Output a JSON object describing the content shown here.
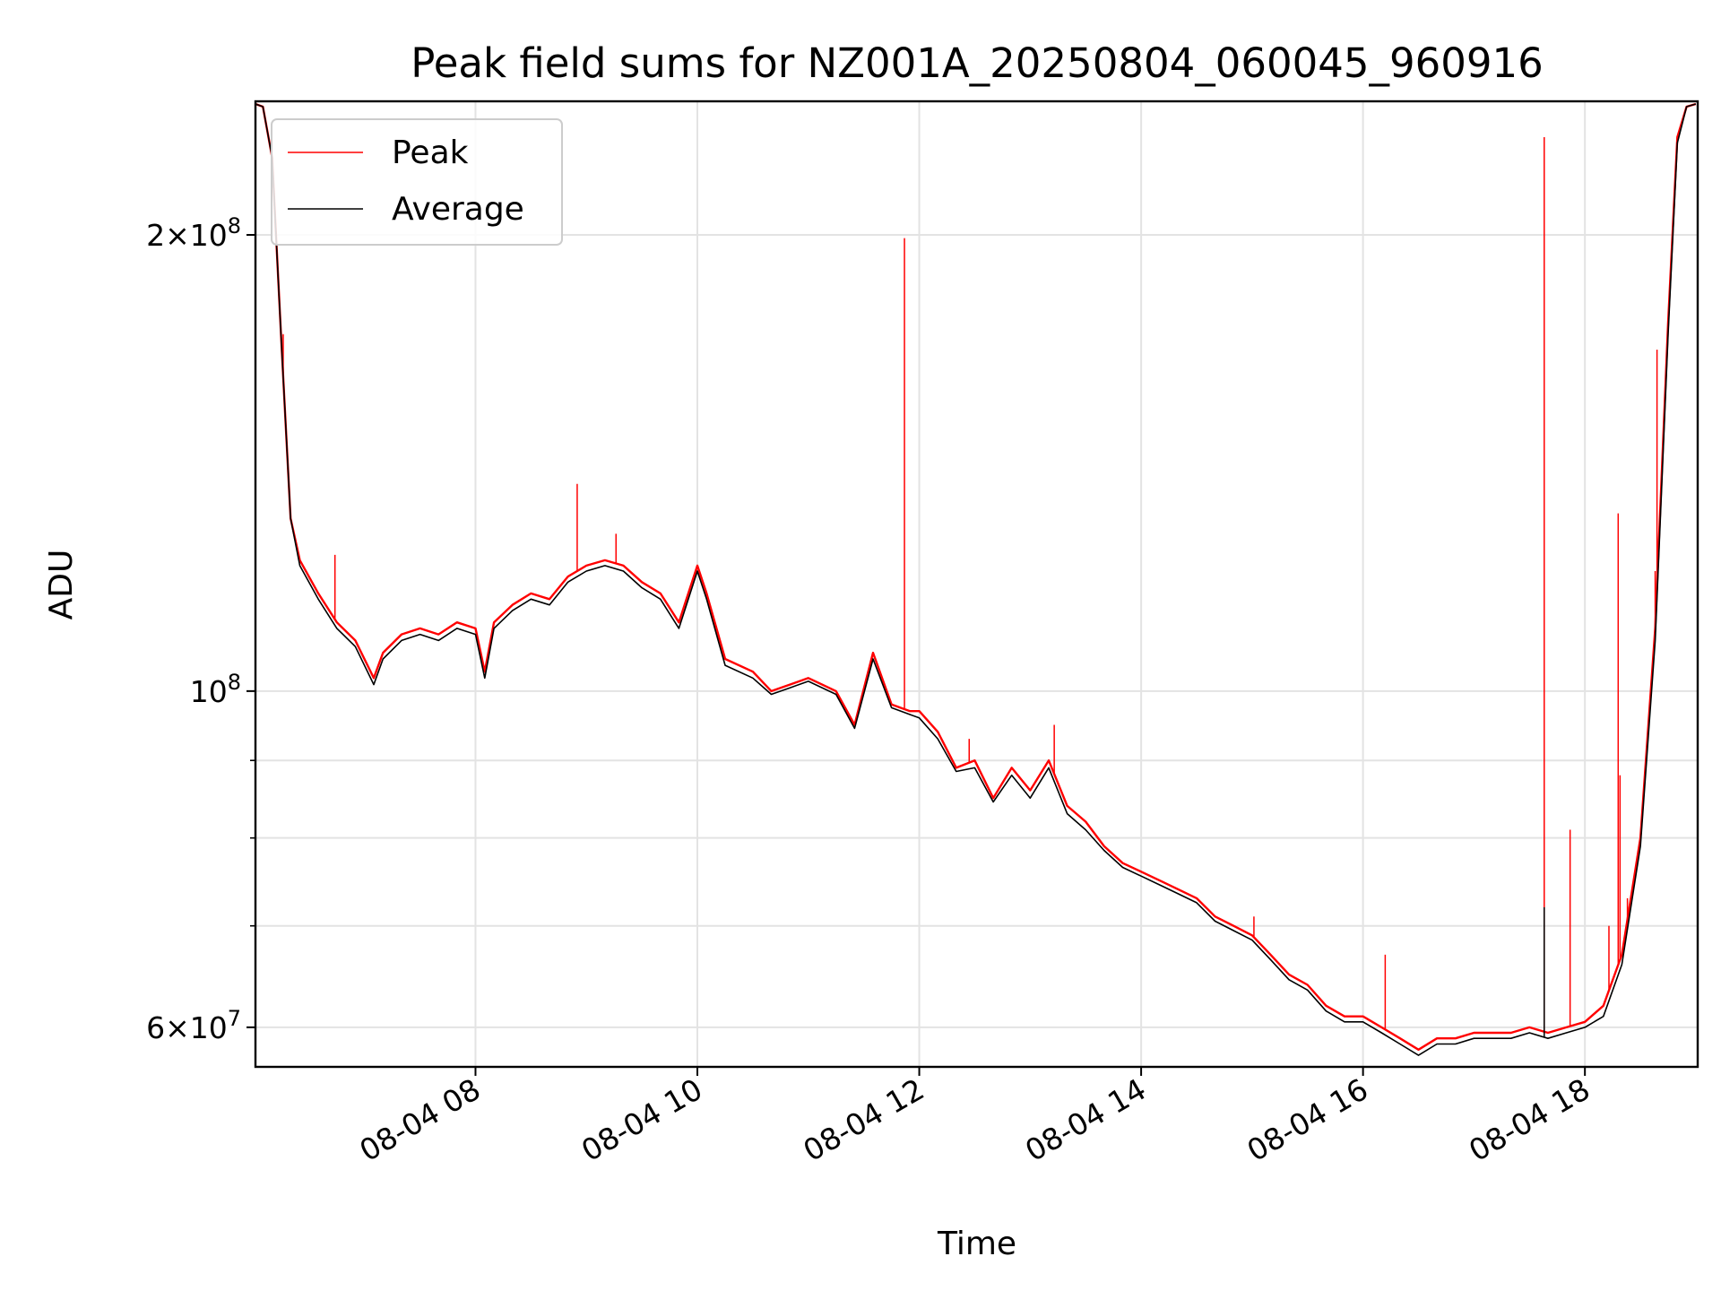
{
  "chart_data": {
    "type": "line",
    "title": "Peak field sums for NZ001A_20250804_060045_960916",
    "xlabel": "Time",
    "ylabel": "ADU",
    "yscale": "log",
    "ylim": [
      56500000,
      245000000
    ],
    "xlim": [
      "08-04 06:01",
      "08-04 19:01"
    ],
    "x_ticks": [
      {
        "value": "08-04 08:00",
        "label": "08-04 08"
      },
      {
        "value": "08-04 10:00",
        "label": "08-04 10"
      },
      {
        "value": "08-04 12:00",
        "label": "08-04 12"
      },
      {
        "value": "08-04 14:00",
        "label": "08-04 14"
      },
      {
        "value": "08-04 16:00",
        "label": "08-04 16"
      },
      {
        "value": "08-04 18:00",
        "label": "08-04 18"
      }
    ],
    "y_major_ticks": [
      {
        "value": 200000000,
        "mantissa": "2",
        "exponent": "8"
      },
      {
        "value": 100000000,
        "mantissa": "",
        "exponent": "8"
      },
      {
        "value": 60000000,
        "mantissa": "6",
        "exponent": "7"
      }
    ],
    "y_minor_ticks": [
      70000000,
      80000000,
      90000000
    ],
    "grid": true,
    "legend_position": "top-left",
    "series": [
      {
        "name": "Peak",
        "color": "#ff0000",
        "points": [
          [
            "08-04 06:01",
            244000000
          ],
          [
            "08-04 06:05",
            243000000
          ],
          [
            "08-04 06:10",
            225000000
          ],
          [
            "08-04 06:15",
            170000000
          ],
          [
            "08-04 06:20",
            130000000
          ],
          [
            "08-04 06:25",
            122000000
          ],
          [
            "08-04 06:35",
            116000000
          ],
          [
            "08-04 06:45",
            111000000
          ],
          [
            "08-04 06:55",
            108000000
          ],
          [
            "08-04 07:05",
            102000000
          ],
          [
            "08-04 07:10",
            106000000
          ],
          [
            "08-04 07:20",
            109000000
          ],
          [
            "08-04 07:30",
            110000000
          ],
          [
            "08-04 07:40",
            109000000
          ],
          [
            "08-04 07:50",
            111000000
          ],
          [
            "08-04 08:00",
            110000000
          ],
          [
            "08-04 08:05",
            103000000
          ],
          [
            "08-04 08:10",
            111000000
          ],
          [
            "08-04 08:20",
            114000000
          ],
          [
            "08-04 08:30",
            116000000
          ],
          [
            "08-04 08:40",
            115000000
          ],
          [
            "08-04 08:50",
            119000000
          ],
          [
            "08-04 09:00",
            121000000
          ],
          [
            "08-04 09:10",
            122000000
          ],
          [
            "08-04 09:20",
            121000000
          ],
          [
            "08-04 09:30",
            118000000
          ],
          [
            "08-04 09:40",
            116000000
          ],
          [
            "08-04 09:50",
            111000000
          ],
          [
            "08-04 10:00",
            121000000
          ],
          [
            "08-04 10:05",
            116000000
          ],
          [
            "08-04 10:15",
            105000000
          ],
          [
            "08-04 10:30",
            103000000
          ],
          [
            "08-04 10:40",
            100000000
          ],
          [
            "08-04 10:50",
            101000000
          ],
          [
            "08-04 11:00",
            102000000
          ],
          [
            "08-04 11:15",
            100000000
          ],
          [
            "08-04 11:25",
            95000000
          ],
          [
            "08-04 11:35",
            106000000
          ],
          [
            "08-04 11:45",
            98000000
          ],
          [
            "08-04 11:55",
            97000000
          ],
          [
            "08-04 12:00",
            97000000
          ],
          [
            "08-04 12:10",
            94000000
          ],
          [
            "08-04 12:20",
            89000000
          ],
          [
            "08-04 12:30",
            90000000
          ],
          [
            "08-04 12:40",
            85000000
          ],
          [
            "08-04 12:50",
            89000000
          ],
          [
            "08-04 13:00",
            86000000
          ],
          [
            "08-04 13:10",
            90000000
          ],
          [
            "08-04 13:20",
            84000000
          ],
          [
            "08-04 13:30",
            82000000
          ],
          [
            "08-04 13:40",
            79000000
          ],
          [
            "08-04 13:50",
            77000000
          ],
          [
            "08-04 14:00",
            76000000
          ],
          [
            "08-04 14:10",
            75000000
          ],
          [
            "08-04 14:20",
            74000000
          ],
          [
            "08-04 14:30",
            73000000
          ],
          [
            "08-04 14:40",
            71000000
          ],
          [
            "08-04 14:50",
            70000000
          ],
          [
            "08-04 15:00",
            69000000
          ],
          [
            "08-04 15:10",
            67000000
          ],
          [
            "08-04 15:20",
            65000000
          ],
          [
            "08-04 15:30",
            64000000
          ],
          [
            "08-04 15:40",
            62000000
          ],
          [
            "08-04 15:50",
            61000000
          ],
          [
            "08-04 16:00",
            61000000
          ],
          [
            "08-04 16:10",
            60000000
          ],
          [
            "08-04 16:20",
            59000000
          ],
          [
            "08-04 16:30",
            58000000
          ],
          [
            "08-04 16:40",
            59000000
          ],
          [
            "08-04 16:50",
            59000000
          ],
          [
            "08-04 17:00",
            59500000
          ],
          [
            "08-04 17:10",
            59500000
          ],
          [
            "08-04 17:20",
            59500000
          ],
          [
            "08-04 17:30",
            60000000
          ],
          [
            "08-04 17:40",
            59500000
          ],
          [
            "08-04 17:50",
            60000000
          ],
          [
            "08-04 18:00",
            60500000
          ],
          [
            "08-04 18:10",
            62000000
          ],
          [
            "08-04 18:20",
            67000000
          ],
          [
            "08-04 18:30",
            80000000
          ],
          [
            "08-04 18:38",
            110000000
          ],
          [
            "08-04 18:45",
            175000000
          ],
          [
            "08-04 18:50",
            232000000
          ],
          [
            "08-04 18:55",
            243000000
          ],
          [
            "08-04 19:00",
            244000000
          ]
        ],
        "spikes": [
          [
            "08-04 06:16",
            172000000
          ],
          [
            "08-04 06:44",
            123000000
          ],
          [
            "08-04 08:55",
            137000000
          ],
          [
            "08-04 09:16",
            127000000
          ],
          [
            "08-04 11:52",
            199000000
          ],
          [
            "08-04 12:27",
            93000000
          ],
          [
            "08-04 13:13",
            95000000
          ],
          [
            "08-04 15:01",
            71000000
          ],
          [
            "08-04 16:12",
            67000000
          ],
          [
            "08-04 17:38",
            232000000
          ],
          [
            "08-04 17:52",
            81000000
          ],
          [
            "08-04 18:13",
            70000000
          ],
          [
            "08-04 18:18",
            131000000
          ],
          [
            "08-04 18:19",
            88000000
          ],
          [
            "08-04 18:23",
            73000000
          ],
          [
            "08-04 18:38",
            120000000
          ],
          [
            "08-04 18:39",
            168000000
          ]
        ]
      },
      {
        "name": "Average",
        "color": "#000000",
        "points": [
          [
            "08-04 06:01",
            244000000
          ],
          [
            "08-04 06:05",
            243000000
          ],
          [
            "08-04 06:10",
            225000000
          ],
          [
            "08-04 06:15",
            170000000
          ],
          [
            "08-04 06:20",
            130000000
          ],
          [
            "08-04 06:25",
            121000000
          ],
          [
            "08-04 06:35",
            115000000
          ],
          [
            "08-04 06:45",
            110000000
          ],
          [
            "08-04 06:55",
            107000000
          ],
          [
            "08-04 07:05",
            101000000
          ],
          [
            "08-04 07:10",
            105000000
          ],
          [
            "08-04 07:20",
            108000000
          ],
          [
            "08-04 07:30",
            109000000
          ],
          [
            "08-04 07:40",
            108000000
          ],
          [
            "08-04 07:50",
            110000000
          ],
          [
            "08-04 08:00",
            109000000
          ],
          [
            "08-04 08:05",
            102000000
          ],
          [
            "08-04 08:10",
            110000000
          ],
          [
            "08-04 08:20",
            113000000
          ],
          [
            "08-04 08:30",
            115000000
          ],
          [
            "08-04 08:40",
            114000000
          ],
          [
            "08-04 08:50",
            118000000
          ],
          [
            "08-04 09:00",
            120000000
          ],
          [
            "08-04 09:10",
            121000000
          ],
          [
            "08-04 09:20",
            120000000
          ],
          [
            "08-04 09:30",
            117000000
          ],
          [
            "08-04 09:40",
            115000000
          ],
          [
            "08-04 09:50",
            110000000
          ],
          [
            "08-04 10:00",
            120000000
          ],
          [
            "08-04 10:05",
            115000000
          ],
          [
            "08-04 10:15",
            104000000
          ],
          [
            "08-04 10:30",
            102000000
          ],
          [
            "08-04 10:40",
            99500000
          ],
          [
            "08-04 10:50",
            100500000
          ],
          [
            "08-04 11:00",
            101500000
          ],
          [
            "08-04 11:15",
            99500000
          ],
          [
            "08-04 11:25",
            94500000
          ],
          [
            "08-04 11:35",
            105000000
          ],
          [
            "08-04 11:45",
            97500000
          ],
          [
            "08-04 11:55",
            96500000
          ],
          [
            "08-04 12:00",
            96000000
          ],
          [
            "08-04 12:10",
            93000000
          ],
          [
            "08-04 12:20",
            88500000
          ],
          [
            "08-04 12:30",
            89000000
          ],
          [
            "08-04 12:40",
            84500000
          ],
          [
            "08-04 12:50",
            88000000
          ],
          [
            "08-04 13:00",
            85000000
          ],
          [
            "08-04 13:10",
            89000000
          ],
          [
            "08-04 13:20",
            83000000
          ],
          [
            "08-04 13:30",
            81000000
          ],
          [
            "08-04 13:40",
            78500000
          ],
          [
            "08-04 13:50",
            76500000
          ],
          [
            "08-04 14:00",
            75500000
          ],
          [
            "08-04 14:10",
            74500000
          ],
          [
            "08-04 14:20",
            73500000
          ],
          [
            "08-04 14:30",
            72500000
          ],
          [
            "08-04 14:40",
            70500000
          ],
          [
            "08-04 14:50",
            69500000
          ],
          [
            "08-04 15:00",
            68500000
          ],
          [
            "08-04 15:10",
            66500000
          ],
          [
            "08-04 15:20",
            64500000
          ],
          [
            "08-04 15:30",
            63500000
          ],
          [
            "08-04 15:40",
            61500000
          ],
          [
            "08-04 15:50",
            60500000
          ],
          [
            "08-04 16:00",
            60500000
          ],
          [
            "08-04 16:10",
            59500000
          ],
          [
            "08-04 16:20",
            58500000
          ],
          [
            "08-04 16:30",
            57500000
          ],
          [
            "08-04 16:40",
            58500000
          ],
          [
            "08-04 16:50",
            58500000
          ],
          [
            "08-04 17:00",
            59000000
          ],
          [
            "08-04 17:10",
            59000000
          ],
          [
            "08-04 17:20",
            59000000
          ],
          [
            "08-04 17:30",
            59500000
          ],
          [
            "08-04 17:40",
            59000000
          ],
          [
            "08-04 17:50",
            59500000
          ],
          [
            "08-04 18:00",
            60000000
          ],
          [
            "08-04 18:10",
            61000000
          ],
          [
            "08-04 18:20",
            66000000
          ],
          [
            "08-04 18:30",
            79000000
          ],
          [
            "08-04 18:38",
            108000000
          ],
          [
            "08-04 18:45",
            172000000
          ],
          [
            "08-04 18:50",
            230000000
          ],
          [
            "08-04 18:55",
            243000000
          ],
          [
            "08-04 19:00",
            244000000
          ]
        ],
        "spikes": [
          [
            "08-04 17:38",
            72000000
          ]
        ]
      }
    ]
  }
}
